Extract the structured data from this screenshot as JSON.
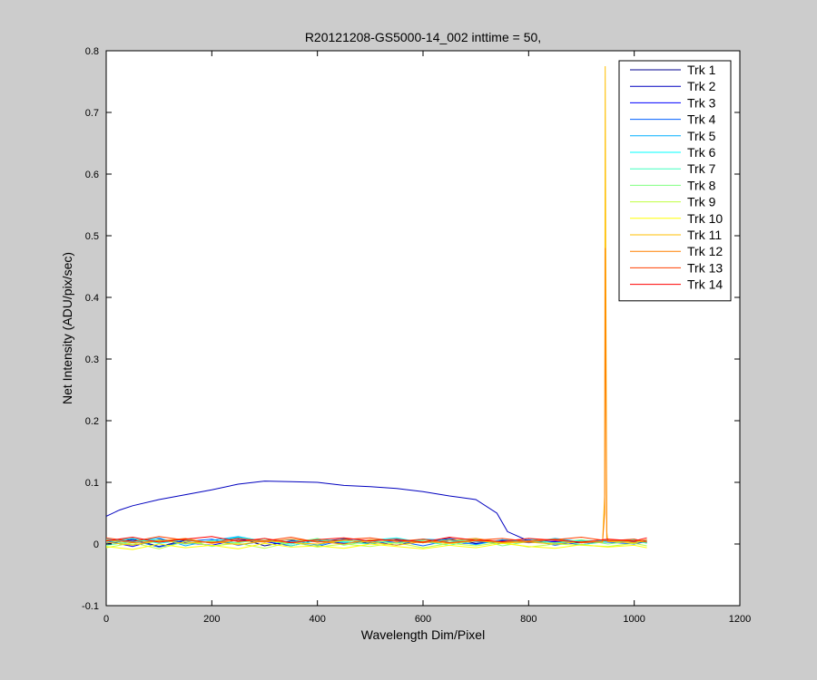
{
  "chart_data": {
    "type": "line",
    "title": "R20121208-GS5000-14_002 inttime = 50,",
    "xlabel": "Wavelength Dim/Pixel",
    "ylabel": "Net Intensity (ADU/pix/sec)",
    "xlim": [
      0,
      1200
    ],
    "ylim": [
      -0.1,
      0.8
    ],
    "xticks": [
      0,
      200,
      400,
      600,
      800,
      1000,
      1200
    ],
    "yticks": [
      -0.1,
      0,
      0.1,
      0.2,
      0.3,
      0.4,
      0.5,
      0.6,
      0.7,
      0.8
    ],
    "xtick_labels": [
      "0",
      "200",
      "400",
      "600",
      "800",
      "1000",
      "1200"
    ],
    "ytick_labels": [
      "-0.1",
      "0",
      "0.1",
      "0.2",
      "0.3",
      "0.4",
      "0.5",
      "0.6",
      "0.7",
      "0.8"
    ],
    "grid": false,
    "legend_position": "top-right",
    "series": [
      {
        "name": "Trk 1",
        "color": "#00008f",
        "x": [
          0,
          50,
          100,
          150,
          200,
          250,
          300,
          350,
          400,
          450,
          500,
          550,
          600,
          650,
          700,
          750,
          760,
          800,
          900,
          1000,
          1024
        ],
        "y": [
          0.0,
          0.008,
          -0.004,
          0.006,
          0.002,
          0.01,
          -0.003,
          0.005,
          0.004,
          0.008,
          0.0,
          0.006,
          0.002,
          0.009,
          0.001,
          0.005,
          0.003,
          0.004,
          0.002,
          0.006,
          0.003
        ]
      },
      {
        "name": "Trk 2",
        "color": "#0000bf",
        "x": [
          0,
          25,
          50,
          100,
          150,
          200,
          250,
          300,
          350,
          400,
          450,
          500,
          550,
          600,
          650,
          700,
          740,
          760,
          800,
          900,
          1000,
          1024
        ],
        "y": [
          0.045,
          0.055,
          0.062,
          0.072,
          0.08,
          0.088,
          0.097,
          0.102,
          0.101,
          0.1,
          0.095,
          0.093,
          0.09,
          0.085,
          0.078,
          0.072,
          0.05,
          0.02,
          0.005,
          0.003,
          0.004,
          0.002
        ]
      },
      {
        "name": "Trk 3",
        "color": "#0000ff",
        "x": [
          0,
          50,
          100,
          150,
          200,
          250,
          300,
          350,
          400,
          450,
          500,
          550,
          600,
          650,
          700,
          750,
          800,
          850,
          900,
          950,
          1000,
          1024
        ],
        "y": [
          0.005,
          -0.004,
          0.008,
          0.002,
          -0.002,
          0.007,
          0.004,
          -0.003,
          0.006,
          0.001,
          0.005,
          -0.002,
          0.008,
          0.003,
          0.0,
          0.006,
          0.002,
          0.004,
          -0.001,
          0.005,
          0.003,
          0.006
        ]
      },
      {
        "name": "Trk 4",
        "color": "#0060ff",
        "x": [
          0,
          50,
          100,
          150,
          200,
          250,
          300,
          350,
          400,
          450,
          500,
          550,
          600,
          650,
          700,
          750,
          800,
          850,
          900,
          950,
          1000,
          1024
        ],
        "y": [
          0.002,
          0.006,
          -0.005,
          0.004,
          0.008,
          -0.002,
          0.005,
          0.003,
          -0.004,
          0.007,
          0.002,
          0.005,
          -0.003,
          0.006,
          0.004,
          0.001,
          0.007,
          -0.002,
          0.005,
          0.003,
          0.0,
          0.004
        ]
      },
      {
        "name": "Trk 5",
        "color": "#00afff",
        "x": [
          0,
          50,
          100,
          150,
          200,
          250,
          300,
          350,
          400,
          450,
          500,
          550,
          600,
          650,
          700,
          750,
          800,
          850,
          900,
          950,
          1000,
          1024
        ],
        "y": [
          0.008,
          0.003,
          0.01,
          -0.003,
          0.006,
          0.012,
          0.004,
          0.007,
          -0.002,
          0.009,
          0.005,
          0.002,
          0.008,
          0.006,
          -0.001,
          0.007,
          0.003,
          0.009,
          0.004,
          0.006,
          0.002,
          0.005
        ]
      },
      {
        "name": "Trk 6",
        "color": "#00ffff",
        "x": [
          0,
          50,
          100,
          150,
          200,
          250,
          300,
          350,
          400,
          450,
          500,
          550,
          600,
          650,
          700,
          750,
          800,
          850,
          900,
          950,
          1000,
          1024
        ],
        "y": [
          0.004,
          0.009,
          0.001,
          0.007,
          0.003,
          0.011,
          0.005,
          0.0,
          0.008,
          0.004,
          0.006,
          0.01,
          0.002,
          0.007,
          0.005,
          0.003,
          0.009,
          0.001,
          0.006,
          0.004,
          0.008,
          0.002
        ]
      },
      {
        "name": "Trk 7",
        "color": "#40ffbf",
        "x": [
          0,
          50,
          100,
          150,
          200,
          250,
          300,
          350,
          400,
          450,
          500,
          550,
          600,
          650,
          700,
          750,
          800,
          850,
          900,
          950,
          1000,
          1024
        ],
        "y": [
          -0.002,
          0.004,
          0.007,
          0.0,
          0.005,
          0.002,
          0.009,
          -0.003,
          0.006,
          0.003,
          0.0,
          0.008,
          0.004,
          -0.002,
          0.006,
          0.002,
          0.005,
          0.007,
          -0.001,
          0.004,
          0.006,
          0.001
        ]
      },
      {
        "name": "Trk 8",
        "color": "#80ff80",
        "x": [
          0,
          50,
          100,
          150,
          200,
          250,
          300,
          350,
          400,
          450,
          500,
          550,
          600,
          650,
          700,
          750,
          800,
          850,
          900,
          950,
          1000,
          1024
        ],
        "y": [
          0.006,
          -0.001,
          0.004,
          0.008,
          -0.004,
          0.003,
          0.006,
          0.002,
          0.009,
          -0.002,
          0.005,
          0.001,
          0.006,
          0.003,
          0.008,
          -0.003,
          0.004,
          0.002,
          0.007,
          0.0,
          0.005,
          0.003
        ]
      },
      {
        "name": "Trk 9",
        "color": "#c0ff40",
        "x": [
          0,
          50,
          100,
          150,
          200,
          250,
          300,
          350,
          400,
          450,
          500,
          550,
          600,
          650,
          700,
          750,
          800,
          850,
          900,
          950,
          1000,
          1024
        ],
        "y": [
          -0.006,
          0.002,
          -0.008,
          0.004,
          -0.003,
          0.001,
          -0.007,
          0.003,
          -0.005,
          0.0,
          -0.004,
          0.002,
          -0.006,
          0.001,
          -0.003,
          0.003,
          -0.005,
          0.0,
          -0.002,
          -0.004,
          0.001,
          -0.003
        ]
      },
      {
        "name": "Trk 10",
        "color": "#ffff00",
        "x": [
          0,
          50,
          100,
          150,
          200,
          250,
          300,
          350,
          400,
          450,
          500,
          550,
          600,
          650,
          700,
          750,
          800,
          850,
          900,
          950,
          1000,
          1024
        ],
        "y": [
          -0.004,
          -0.009,
          0.0,
          -0.006,
          -0.002,
          -0.008,
          0.001,
          -0.005,
          -0.003,
          -0.007,
          0.0,
          -0.004,
          -0.008,
          -0.002,
          -0.006,
          0.001,
          -0.004,
          -0.007,
          -0.001,
          -0.005,
          -0.002,
          -0.006
        ]
      },
      {
        "name": "Trk 11",
        "color": "#ffbf00",
        "x": [
          0,
          50,
          100,
          150,
          200,
          250,
          300,
          350,
          400,
          450,
          500,
          550,
          600,
          650,
          700,
          750,
          800,
          850,
          900,
          940,
          944,
          945,
          946,
          948,
          950,
          1000,
          1024
        ],
        "y": [
          0.003,
          -0.002,
          0.006,
          0.001,
          0.004,
          -0.001,
          0.005,
          0.002,
          0.0,
          0.006,
          0.003,
          -0.002,
          0.004,
          0.001,
          0.005,
          0.002,
          0.003,
          0.0,
          0.004,
          0.003,
          0.08,
          0.775,
          0.48,
          0.02,
          0.004,
          0.002,
          0.005
        ]
      },
      {
        "name": "Trk 12",
        "color": "#ff8000",
        "x": [
          0,
          50,
          100,
          150,
          200,
          250,
          300,
          350,
          400,
          450,
          500,
          550,
          600,
          650,
          700,
          750,
          800,
          850,
          900,
          940,
          944,
          945,
          946,
          948,
          950,
          1000,
          1024
        ],
        "y": [
          0.007,
          0.002,
          0.005,
          0.009,
          0.001,
          0.006,
          0.003,
          0.008,
          0.004,
          0.0,
          0.007,
          0.005,
          0.002,
          0.006,
          0.009,
          0.003,
          0.005,
          0.008,
          0.002,
          0.004,
          0.05,
          0.48,
          0.3,
          0.01,
          0.006,
          0.004,
          0.007
        ]
      },
      {
        "name": "Trk 13",
        "color": "#ff4000",
        "x": [
          0,
          50,
          100,
          150,
          200,
          250,
          300,
          350,
          400,
          450,
          500,
          550,
          600,
          650,
          700,
          750,
          800,
          850,
          900,
          950,
          1000,
          1024
        ],
        "y": [
          0.01,
          0.004,
          0.012,
          0.006,
          0.002,
          0.009,
          0.005,
          0.011,
          0.003,
          0.007,
          0.01,
          0.004,
          0.008,
          0.002,
          0.006,
          0.009,
          0.004,
          0.007,
          0.011,
          0.005,
          0.008,
          0.003
        ]
      },
      {
        "name": "Trk 14",
        "color": "#ff0000",
        "x": [
          0,
          50,
          100,
          150,
          200,
          250,
          300,
          350,
          400,
          450,
          500,
          550,
          600,
          650,
          700,
          750,
          800,
          850,
          900,
          950,
          1000,
          1024
        ],
        "y": [
          0.005,
          0.011,
          0.003,
          0.008,
          0.012,
          0.004,
          0.009,
          0.002,
          0.007,
          0.01,
          0.005,
          0.008,
          0.003,
          0.011,
          0.006,
          0.004,
          0.009,
          0.006,
          0.003,
          0.008,
          0.005,
          0.01
        ]
      }
    ]
  }
}
